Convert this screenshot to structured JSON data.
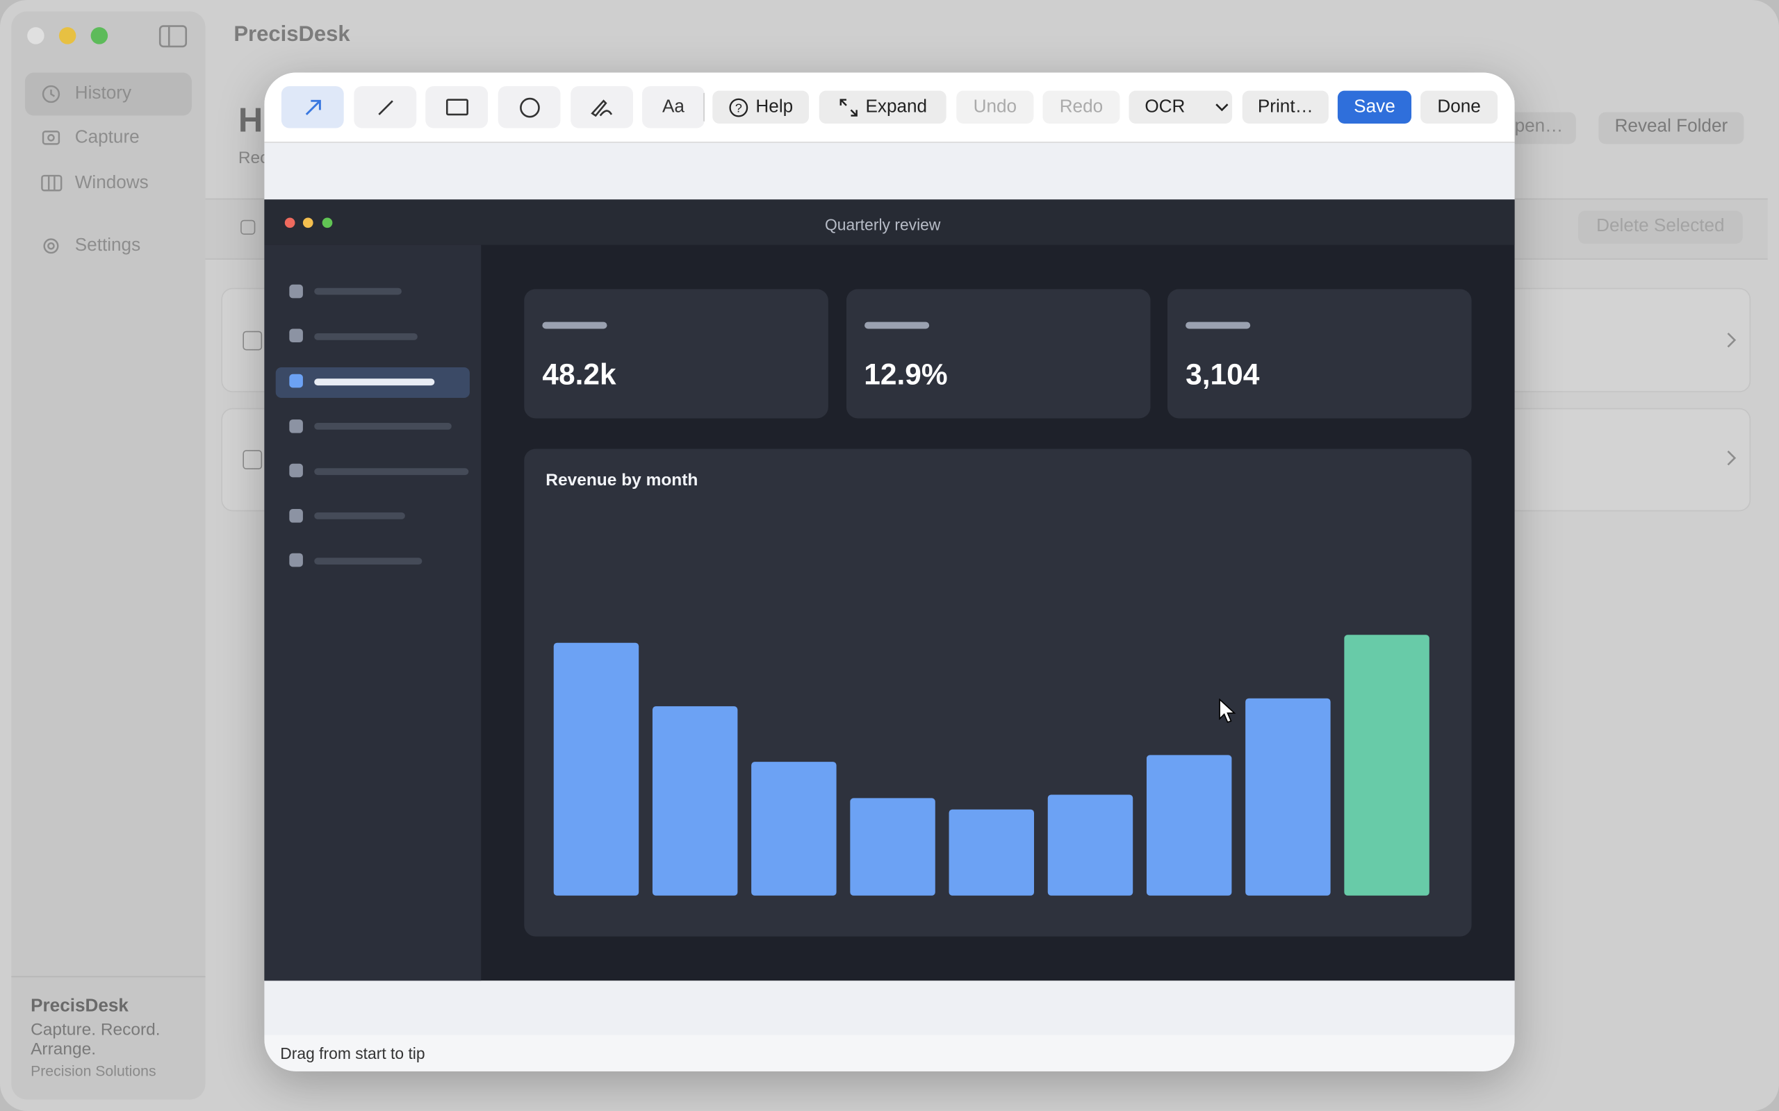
{
  "app": {
    "name": "PrecisDesk",
    "sidebar": [
      "History",
      "Capture",
      "Windows",
      "Settings"
    ],
    "heading": "H",
    "subheading": "Rec",
    "buttons": [
      "pen…",
      "Reveal Folder"
    ],
    "delete": "Delete Selected",
    "footer": {
      "name": "PrecisDesk",
      "tagline": "Capture. Record. Arrange.",
      "company": "Precision Solutions"
    }
  },
  "editor": {
    "toolbar": {
      "text_tool": "Aa",
      "buttons": [
        "Help",
        "Expand",
        "Undo",
        "Redo",
        "OCR",
        "Print…",
        "Save",
        "Done"
      ]
    },
    "status": "Drag from start to tip"
  },
  "screenshot": {
    "title": "Quarterly review",
    "stats": [
      "48.2k",
      "12.9%",
      "3,104"
    ],
    "chart_data": {
      "type": "bar",
      "title": "Revenue by month",
      "values": [
        223,
        167,
        118,
        86,
        76,
        89,
        124,
        174,
        230
      ],
      "colors": [
        "#6ca2f4",
        "#6ca2f4",
        "#6ca2f4",
        "#6ca2f4",
        "#6ca2f4",
        "#6ca2f4",
        "#6ca2f4",
        "#6ca2f4",
        "#68cba8"
      ],
      "ylim": [
        0,
        300
      ]
    }
  }
}
